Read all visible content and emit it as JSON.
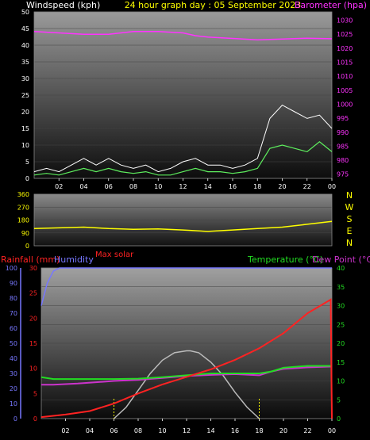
{
  "header": {
    "left_label": "Windspeed (kph)",
    "title": "24 hour graph day : 05 September 2023",
    "right_label": "Barometer (hpa)"
  },
  "colors": {
    "wind": "#ffffff",
    "gust": "#ffffff",
    "avg_wind": "#5ef05e",
    "barometer": "#ff33ff",
    "direction": "#ffff00",
    "rainfall": "#ff2222",
    "humidity": "#7777ff",
    "temperature": "#22dd22",
    "dewpoint": "#cc33cc",
    "solar": "#bbbbbb",
    "axis_text": "#ffffff"
  },
  "chart_data": [
    {
      "type": "line",
      "name_ref": "wind",
      "x_ticks": [
        "02",
        "04",
        "06",
        "08",
        "10",
        "12",
        "14",
        "16",
        "18",
        "20",
        "22",
        "00"
      ],
      "left_axis": {
        "label": "Windspeed (kph)",
        "ticks": [
          0,
          5,
          10,
          15,
          20,
          25,
          30,
          35,
          40,
          45,
          50
        ],
        "ylim": [
          0,
          50
        ]
      },
      "right_axis": {
        "label": "Barometer (hpa)",
        "ticks": [
          975,
          980,
          985,
          990,
          995,
          1000,
          1005,
          1010,
          1015,
          1020,
          1025,
          1030
        ],
        "ylim": [
          973.5,
          1033
        ]
      },
      "series": [
        {
          "name": "Windspeed",
          "color_ref": "wind",
          "x": [
            0,
            1,
            2,
            3,
            4,
            5,
            6,
            7,
            8,
            9,
            10,
            11,
            12,
            13,
            14,
            15,
            16,
            17,
            18,
            19,
            20,
            21,
            22,
            23,
            24
          ],
          "values": [
            1,
            1.5,
            1,
            2,
            3,
            2,
            3,
            2,
            1.5,
            2,
            1,
            1,
            2,
            3,
            2,
            2,
            1.5,
            2,
            3,
            9,
            10,
            9,
            8,
            11,
            8
          ]
        },
        {
          "name": "Gust",
          "color_ref": "gust",
          "x": [
            0,
            1,
            2,
            3,
            4,
            5,
            6,
            7,
            8,
            9,
            10,
            11,
            12,
            13,
            14,
            15,
            16,
            17,
            18,
            19,
            20,
            21,
            22,
            23,
            24
          ],
          "values": [
            2,
            3,
            2,
            4,
            6,
            4,
            6,
            4,
            3,
            4,
            2,
            3,
            5,
            6,
            4,
            4,
            3,
            4,
            6,
            18,
            22,
            20,
            18,
            19,
            15
          ]
        },
        {
          "name": "Barometer",
          "color_ref": "barometer",
          "x": [
            0,
            2,
            4,
            6,
            8,
            10,
            12,
            13,
            14,
            16,
            18,
            20,
            22,
            24
          ],
          "values": [
            1026,
            1025.5,
            1025,
            1025,
            1026,
            1026,
            1025.5,
            1024.5,
            1024,
            1023.5,
            1023,
            1023.3,
            1023.6,
            1023.4
          ]
        }
      ]
    },
    {
      "type": "line",
      "name_ref": "direction",
      "left_axis": {
        "ticks": [
          0,
          90,
          180,
          270,
          360
        ],
        "ylim": [
          0,
          360
        ]
      },
      "right_labels": [
        "N",
        "W",
        "S",
        "E",
        "N"
      ],
      "series": [
        {
          "name": "Wind direction",
          "color_ref": "direction",
          "x": [
            0,
            2,
            4,
            6,
            8,
            10,
            12,
            13,
            14,
            16,
            18,
            20,
            22,
            24
          ],
          "values": [
            120,
            125,
            130,
            120,
            115,
            118,
            110,
            105,
            100,
            110,
            120,
            130,
            150,
            170
          ]
        }
      ]
    },
    {
      "type": "line",
      "name_ref": "temperature",
      "left_axis_outer": {
        "label": "Humidity",
        "ticks": [
          0,
          10,
          20,
          30,
          40,
          50,
          60,
          70,
          80,
          90,
          100
        ],
        "ylim": [
          0,
          100
        ]
      },
      "left_axis_inner": {
        "label": "Rainfall (mm)",
        "ticks": [
          0,
          5,
          10,
          15,
          20,
          25,
          30
        ],
        "ylim": [
          0,
          30
        ]
      },
      "right_axis": {
        "label": "Temperature (°C)",
        "label2": "Dew Point (°C)",
        "ticks": [
          0,
          5,
          10,
          15,
          20,
          25,
          30,
          35,
          40
        ],
        "ylim": [
          0,
          40
        ]
      },
      "extra_label": "Max solar",
      "series": [
        {
          "name": "Humidity",
          "color_ref": "humidity",
          "x": [
            0,
            0.5,
            1,
            1.5,
            24
          ],
          "values": [
            75,
            90,
            98,
            100,
            100
          ]
        },
        {
          "name": "Rainfall",
          "color_ref": "rainfall",
          "x": [
            0,
            2,
            4,
            6,
            8,
            10,
            12,
            14,
            16,
            18,
            20,
            22,
            23.9,
            24
          ],
          "values": [
            0.3,
            0.8,
            1.5,
            3,
            5,
            6.8,
            8.3,
            9.8,
            11.7,
            14,
            17,
            21,
            23.7,
            0
          ]
        },
        {
          "name": "Temperature",
          "color_ref": "temperature",
          "x": [
            0,
            1,
            3,
            6,
            8,
            10,
            12,
            14,
            16,
            18,
            19,
            20,
            22,
            24
          ],
          "values": [
            11,
            10.5,
            10.5,
            10.5,
            10.6,
            11,
            11.5,
            12,
            12,
            12,
            12.5,
            13.5,
            14,
            14
          ]
        },
        {
          "name": "Dew Point",
          "color_ref": "dewpoint",
          "x": [
            0,
            1,
            3,
            6,
            8,
            10,
            12,
            14,
            16,
            18,
            19,
            20,
            22,
            24
          ],
          "values": [
            9,
            9,
            9.3,
            10,
            10.3,
            10.8,
            11.3,
            11.6,
            11.8,
            11.5,
            12.5,
            13.2,
            13.6,
            13.8
          ]
        },
        {
          "name": "Solar",
          "color_ref": "solar",
          "x": [
            6,
            7,
            8,
            9,
            10,
            11,
            12,
            12.3,
            13,
            14,
            15,
            16,
            17,
            18
          ],
          "values": [
            0,
            3,
            7.5,
            12,
            15.5,
            17.5,
            18,
            18,
            17.5,
            15,
            11.5,
            7,
            3,
            0
          ]
        }
      ]
    }
  ]
}
